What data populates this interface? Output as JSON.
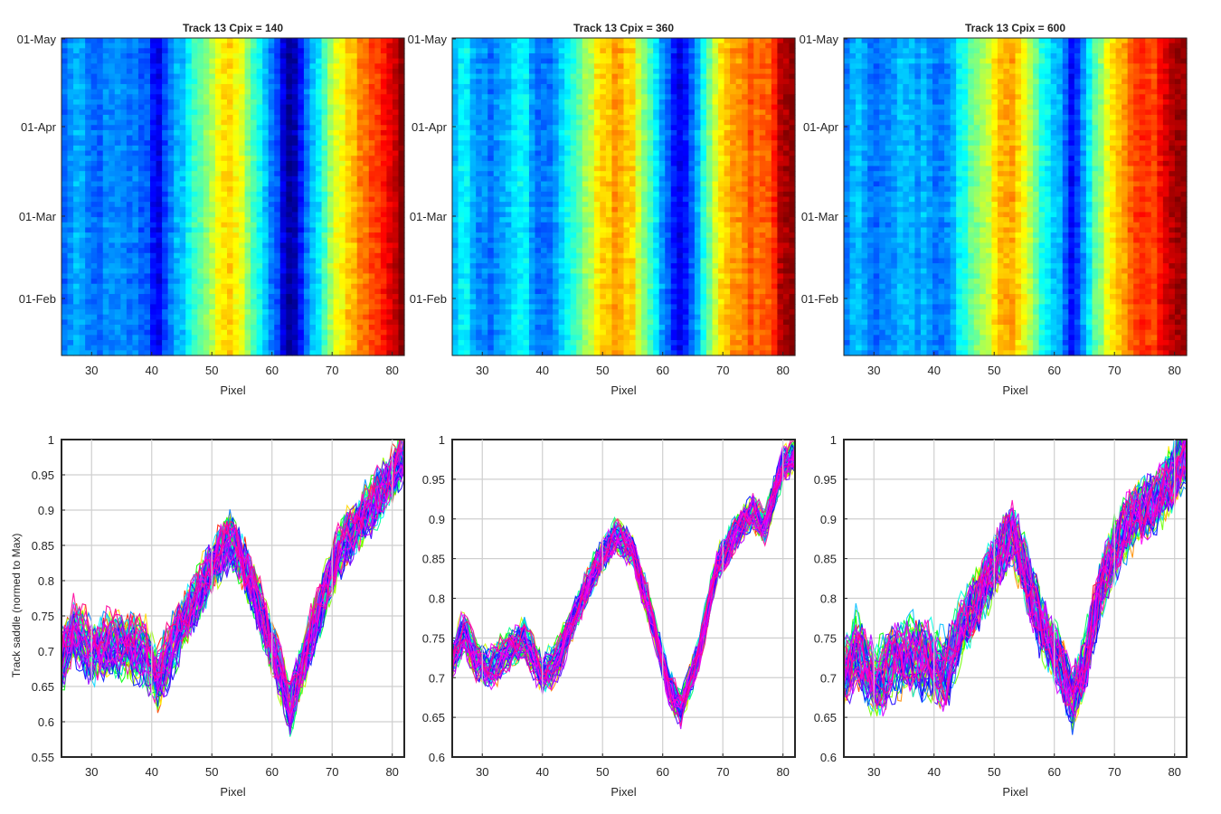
{
  "figure": {
    "colormap": "jet",
    "line_palette": "hsv"
  },
  "chart_data": [
    {
      "type": "heatmap",
      "title": "Track 13 Cpix = 140",
      "xlabel": "Pixel",
      "ylabel": "",
      "xlim": [
        25,
        82
      ],
      "xticks": [
        "30",
        "40",
        "50",
        "60",
        "70",
        "80"
      ],
      "yticks": [
        "01-Feb",
        "01-Mar",
        "01-Apr",
        "01-May"
      ],
      "profile": [
        [
          25,
          0.69
        ],
        [
          27,
          0.73
        ],
        [
          30,
          0.7
        ],
        [
          33,
          0.71
        ],
        [
          36,
          0.71
        ],
        [
          39,
          0.7
        ],
        [
          41,
          0.66
        ],
        [
          44,
          0.72
        ],
        [
          47,
          0.77
        ],
        [
          50,
          0.82
        ],
        [
          53,
          0.86
        ],
        [
          55,
          0.83
        ],
        [
          58,
          0.76
        ],
        [
          61,
          0.68
        ],
        [
          63,
          0.62
        ],
        [
          65,
          0.68
        ],
        [
          68,
          0.76
        ],
        [
          71,
          0.84
        ],
        [
          74,
          0.88
        ],
        [
          77,
          0.91
        ],
        [
          80,
          0.95
        ],
        [
          82,
          0.98
        ]
      ]
    },
    {
      "type": "heatmap",
      "title": "Track 13 Cpix = 360",
      "xlabel": "Pixel",
      "ylabel": "",
      "xlim": [
        25,
        82
      ],
      "xticks": [
        "30",
        "40",
        "50",
        "60",
        "70",
        "80"
      ],
      "yticks": [
        "01-Feb",
        "01-Mar",
        "01-Apr",
        "01-May"
      ],
      "profile": [
        [
          25,
          0.72
        ],
        [
          27,
          0.76
        ],
        [
          29,
          0.72
        ],
        [
          31,
          0.71
        ],
        [
          34,
          0.73
        ],
        [
          37,
          0.75
        ],
        [
          40,
          0.7
        ],
        [
          43,
          0.73
        ],
        [
          46,
          0.79
        ],
        [
          49,
          0.84
        ],
        [
          52,
          0.88
        ],
        [
          55,
          0.86
        ],
        [
          58,
          0.78
        ],
        [
          61,
          0.69
        ],
        [
          63,
          0.66
        ],
        [
          66,
          0.73
        ],
        [
          69,
          0.84
        ],
        [
          72,
          0.88
        ],
        [
          75,
          0.91
        ],
        [
          77,
          0.89
        ],
        [
          80,
          0.97
        ],
        [
          82,
          0.98
        ]
      ]
    },
    {
      "type": "heatmap",
      "title": "Track 13 Cpix = 600",
      "xlabel": "Pixel",
      "ylabel": "",
      "xlim": [
        25,
        82
      ],
      "xticks": [
        "30",
        "40",
        "50",
        "60",
        "70",
        "80"
      ],
      "yticks": [
        "01-Feb",
        "01-Mar",
        "01-Apr",
        "01-May"
      ],
      "profile": [
        [
          25,
          0.7
        ],
        [
          27,
          0.74
        ],
        [
          30,
          0.69
        ],
        [
          33,
          0.72
        ],
        [
          36,
          0.73
        ],
        [
          39,
          0.72
        ],
        [
          42,
          0.71
        ],
        [
          45,
          0.77
        ],
        [
          48,
          0.81
        ],
        [
          51,
          0.86
        ],
        [
          53,
          0.88
        ],
        [
          55,
          0.84
        ],
        [
          58,
          0.76
        ],
        [
          61,
          0.72
        ],
        [
          63,
          0.67
        ],
        [
          65,
          0.72
        ],
        [
          68,
          0.82
        ],
        [
          71,
          0.88
        ],
        [
          74,
          0.91
        ],
        [
          77,
          0.92
        ],
        [
          80,
          0.96
        ],
        [
          82,
          0.98
        ]
      ]
    },
    {
      "type": "line",
      "title": "",
      "xlabel": "Pixel",
      "ylabel": "Track saddle (normed to Max)",
      "xlim": [
        25,
        82
      ],
      "ylim": [
        0.55,
        1
      ],
      "grid": true,
      "xticks": [
        "30",
        "40",
        "50",
        "60",
        "70",
        "80"
      ],
      "yticks": [
        "0.55",
        "0.6",
        "0.65",
        "0.7",
        "0.75",
        "0.8",
        "0.85",
        "0.9",
        "0.95",
        "1"
      ],
      "series_count": 60,
      "mean_curve": [
        [
          25,
          0.69
        ],
        [
          27,
          0.73
        ],
        [
          30,
          0.7
        ],
        [
          33,
          0.71
        ],
        [
          36,
          0.71
        ],
        [
          39,
          0.7
        ],
        [
          41,
          0.66
        ],
        [
          44,
          0.72
        ],
        [
          47,
          0.77
        ],
        [
          50,
          0.82
        ],
        [
          53,
          0.86
        ],
        [
          55,
          0.83
        ],
        [
          58,
          0.76
        ],
        [
          61,
          0.68
        ],
        [
          63,
          0.62
        ],
        [
          65,
          0.68
        ],
        [
          68,
          0.76
        ],
        [
          71,
          0.84
        ],
        [
          74,
          0.88
        ],
        [
          77,
          0.91
        ],
        [
          80,
          0.95
        ],
        [
          82,
          0.98
        ]
      ]
    },
    {
      "type": "line",
      "title": "",
      "xlabel": "Pixel",
      "ylabel": "",
      "xlim": [
        25,
        82
      ],
      "ylim": [
        0.6,
        1
      ],
      "grid": true,
      "xticks": [
        "30",
        "40",
        "50",
        "60",
        "70",
        "80"
      ],
      "yticks": [
        "0.6",
        "0.65",
        "0.7",
        "0.75",
        "0.8",
        "0.85",
        "0.9",
        "0.95",
        "1"
      ],
      "series_count": 60,
      "mean_curve": [
        [
          25,
          0.72
        ],
        [
          27,
          0.76
        ],
        [
          29,
          0.72
        ],
        [
          31,
          0.71
        ],
        [
          34,
          0.73
        ],
        [
          37,
          0.75
        ],
        [
          40,
          0.7
        ],
        [
          43,
          0.73
        ],
        [
          46,
          0.79
        ],
        [
          49,
          0.84
        ],
        [
          52,
          0.88
        ],
        [
          55,
          0.86
        ],
        [
          58,
          0.78
        ],
        [
          61,
          0.69
        ],
        [
          63,
          0.66
        ],
        [
          66,
          0.73
        ],
        [
          69,
          0.84
        ],
        [
          72,
          0.88
        ],
        [
          75,
          0.91
        ],
        [
          77,
          0.89
        ],
        [
          80,
          0.97
        ],
        [
          82,
          0.98
        ]
      ]
    },
    {
      "type": "line",
      "title": "",
      "xlabel": "Pixel",
      "ylabel": "",
      "xlim": [
        25,
        82
      ],
      "ylim": [
        0.6,
        1
      ],
      "grid": true,
      "xticks": [
        "30",
        "40",
        "50",
        "60",
        "70",
        "80"
      ],
      "yticks": [
        "0.6",
        "0.65",
        "0.7",
        "0.75",
        "0.8",
        "0.85",
        "0.9",
        "0.95",
        "1"
      ],
      "series_count": 60,
      "mean_curve": [
        [
          25,
          0.7
        ],
        [
          27,
          0.74
        ],
        [
          30,
          0.69
        ],
        [
          33,
          0.72
        ],
        [
          36,
          0.73
        ],
        [
          39,
          0.72
        ],
        [
          42,
          0.71
        ],
        [
          45,
          0.77
        ],
        [
          48,
          0.81
        ],
        [
          51,
          0.86
        ],
        [
          53,
          0.88
        ],
        [
          55,
          0.84
        ],
        [
          58,
          0.76
        ],
        [
          61,
          0.72
        ],
        [
          63,
          0.67
        ],
        [
          65,
          0.72
        ],
        [
          68,
          0.82
        ],
        [
          71,
          0.88
        ],
        [
          74,
          0.91
        ],
        [
          77,
          0.92
        ],
        [
          80,
          0.96
        ],
        [
          82,
          0.98
        ]
      ]
    }
  ]
}
